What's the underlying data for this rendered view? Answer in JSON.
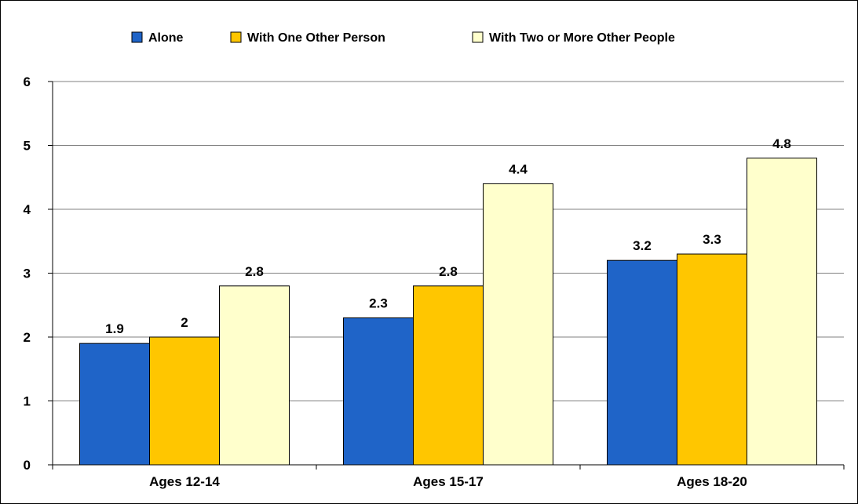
{
  "chart_data": {
    "type": "bar",
    "title": "",
    "xlabel": "",
    "ylabel": "",
    "ylim": [
      0,
      6
    ],
    "yticks": [
      0,
      1,
      2,
      3,
      4,
      5,
      6
    ],
    "grid": true,
    "legend_position": "top",
    "categories": [
      "Ages 12-14",
      "Ages 15-17",
      "Ages 18-20"
    ],
    "series": [
      {
        "name": "Alone",
        "color": "#1F64C8",
        "values": [
          1.9,
          2.3,
          3.2
        ],
        "labels": [
          "1.9",
          "2.3",
          "3.2"
        ]
      },
      {
        "name": "With One Other Person",
        "color": "#FFC600",
        "values": [
          2.0,
          2.8,
          3.3
        ],
        "labels": [
          "2",
          "2.8",
          "3.3"
        ]
      },
      {
        "name": "With Two or More Other People",
        "color": "#FFFFCC",
        "values": [
          2.8,
          4.4,
          4.8
        ],
        "labels": [
          "2.8",
          "4.4",
          "4.8"
        ]
      }
    ]
  }
}
